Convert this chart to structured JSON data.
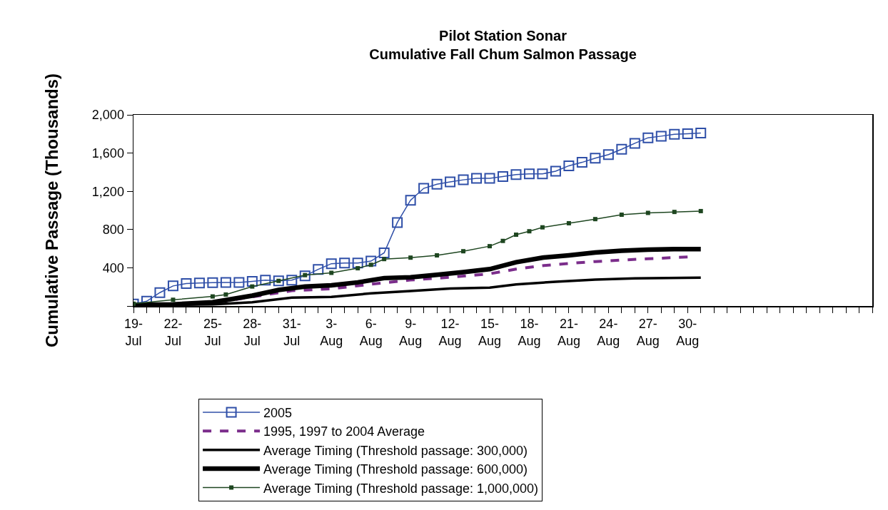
{
  "chart_data": {
    "type": "line",
    "title": "Pilot Station Sonar\nCumulative Fall Chum Salmon Passage",
    "ylabel": "Cumulative Passage (Thousands)",
    "xlim": [
      "--07-19",
      "--09-13"
    ],
    "xticks": [
      {
        "value": "--07-19",
        "label": "19-\nJul"
      },
      {
        "value": "--07-20",
        "label": null
      },
      {
        "value": "--07-21",
        "label": null
      },
      {
        "value": "--07-22",
        "label": "22-\nJul"
      },
      {
        "value": "--07-23",
        "label": null
      },
      {
        "value": "--07-24",
        "label": null
      },
      {
        "value": "--07-25",
        "label": "25-\nJul"
      },
      {
        "value": "--07-26",
        "label": null
      },
      {
        "value": "--07-27",
        "label": null
      },
      {
        "value": "--07-28",
        "label": "28-\nJul"
      },
      {
        "value": "--07-29",
        "label": null
      },
      {
        "value": "--07-30",
        "label": null
      },
      {
        "value": "--07-31",
        "label": "31-\nJul"
      },
      {
        "value": "--08-01",
        "label": null
      },
      {
        "value": "--08-02",
        "label": null
      },
      {
        "value": "--08-03",
        "label": "3-\nAug"
      },
      {
        "value": "--08-04",
        "label": null
      },
      {
        "value": "--08-05",
        "label": null
      },
      {
        "value": "--08-06",
        "label": "6-\nAug"
      },
      {
        "value": "--08-07",
        "label": null
      },
      {
        "value": "--08-08",
        "label": null
      },
      {
        "value": "--08-09",
        "label": "9-\nAug"
      },
      {
        "value": "--08-10",
        "label": null
      },
      {
        "value": "--08-11",
        "label": null
      },
      {
        "value": "--08-12",
        "label": "12-\nAug"
      },
      {
        "value": "--08-13",
        "label": null
      },
      {
        "value": "--08-14",
        "label": null
      },
      {
        "value": "--08-15",
        "label": "15-\nAug"
      },
      {
        "value": "--08-16",
        "label": null
      },
      {
        "value": "--08-17",
        "label": null
      },
      {
        "value": "--08-18",
        "label": "18-\nAug"
      },
      {
        "value": "--08-19",
        "label": null
      },
      {
        "value": "--08-20",
        "label": null
      },
      {
        "value": "--08-21",
        "label": "21-\nAug"
      },
      {
        "value": "--08-22",
        "label": null
      },
      {
        "value": "--08-23",
        "label": null
      },
      {
        "value": "--08-24",
        "label": "24-\nAug"
      },
      {
        "value": "--08-25",
        "label": null
      },
      {
        "value": "--08-26",
        "label": null
      },
      {
        "value": "--08-27",
        "label": "27-\nAug"
      },
      {
        "value": "--08-28",
        "label": null
      },
      {
        "value": "--08-29",
        "label": null
      },
      {
        "value": "--08-30",
        "label": "30-\nAug"
      },
      {
        "value": "--08-31",
        "label": null
      },
      {
        "value": "--09-01",
        "label": null
      },
      {
        "value": "--09-02",
        "label": null
      },
      {
        "value": "--09-03",
        "label": null
      },
      {
        "value": "--09-04",
        "label": null
      },
      {
        "value": "--09-05",
        "label": null
      },
      {
        "value": "--09-06",
        "label": null
      },
      {
        "value": "--09-07",
        "label": null
      },
      {
        "value": "--09-08",
        "label": null
      },
      {
        "value": "--09-09",
        "label": null
      },
      {
        "value": "--09-10",
        "label": null
      },
      {
        "value": "--09-11",
        "label": null
      },
      {
        "value": "--09-12",
        "label": null
      },
      {
        "value": "--09-13",
        "label": null
      }
    ],
    "ylim": [
      0,
      2000
    ],
    "yticks": [
      {
        "value": 0,
        "label": null
      },
      {
        "value": 400,
        "label": "400"
      },
      {
        "value": 800,
        "label": "800"
      },
      {
        "value": 1200,
        "label": "1,200"
      },
      {
        "value": 1600,
        "label": "1,600"
      },
      {
        "value": 2000,
        "label": "2,000"
      }
    ],
    "grid": false,
    "legend": "bottom",
    "series": [
      {
        "name": "2005",
        "color": "#2f4fa8",
        "marker": "square",
        "line_style": "solid",
        "x": [
          "--07-19",
          "--07-20",
          "--07-21",
          "--07-22",
          "--07-23",
          "--07-24",
          "--07-25",
          "--07-26",
          "--07-27",
          "--07-28",
          "--07-29",
          "--07-30",
          "--07-31",
          "--08-01",
          "--08-02",
          "--08-03",
          "--08-04",
          "--08-05",
          "--08-06",
          "--08-07",
          "--08-08",
          "--08-09",
          "--08-10",
          "--08-11",
          "--08-12",
          "--08-13",
          "--08-14",
          "--08-15",
          "--08-16",
          "--08-17",
          "--08-18",
          "--08-19",
          "--08-20",
          "--08-21",
          "--08-22",
          "--08-23",
          "--08-24",
          "--08-25",
          "--08-26",
          "--08-27",
          "--08-28",
          "--08-29",
          "--08-30",
          "--08-31"
        ],
        "values": [
          20,
          50,
          140,
          210,
          235,
          240,
          245,
          247,
          247,
          258,
          270,
          263,
          270,
          316,
          383,
          443,
          450,
          450,
          470,
          556,
          874,
          1107,
          1231,
          1274,
          1299,
          1320,
          1335,
          1335,
          1354,
          1375,
          1382,
          1382,
          1411,
          1467,
          1503,
          1546,
          1584,
          1640,
          1702,
          1760,
          1777,
          1796,
          1803,
          1810
        ]
      },
      {
        "name": "1995, 1997 to 2004 Average",
        "color": "#7b2d8b",
        "marker": "none",
        "line_style": "dashed",
        "x": [
          "--07-19",
          "--07-25",
          "--07-28",
          "--07-31",
          "--08-03",
          "--08-06",
          "--08-09",
          "--08-12",
          "--08-15",
          "--08-17",
          "--08-19",
          "--08-21",
          "--08-23",
          "--08-25",
          "--08-27",
          "--08-30"
        ],
        "values": [
          7,
          31,
          96,
          160,
          180,
          228,
          272,
          301,
          337,
          386,
          422,
          445,
          465,
          481,
          494,
          513
        ]
      },
      {
        "name": "Average Timing (Threshold passage: 300,000)",
        "color": "#000000",
        "marker": "none",
        "line_style": "solid",
        "x": [
          "--07-19",
          "--07-25",
          "--07-28",
          "--07-31",
          "--08-03",
          "--08-06",
          "--08-09",
          "--08-12",
          "--08-15",
          "--08-17",
          "--08-20",
          "--08-23",
          "--08-26",
          "--08-31"
        ],
        "values": [
          7,
          17,
          40,
          88,
          96,
          132,
          157,
          182,
          193,
          225,
          254,
          277,
          290,
          297
        ]
      },
      {
        "name": "Average Timing (Threshold passage: 600,000)",
        "color": "#000000",
        "marker": "none",
        "line_style": "solid",
        "x": [
          "--07-19",
          "--07-22",
          "--07-25",
          "--07-28",
          "--07-30",
          "--08-01",
          "--08-03",
          "--08-05",
          "--08-07",
          "--08-09",
          "--08-11",
          "--08-13",
          "--08-15",
          "--08-17",
          "--08-19",
          "--08-21",
          "--08-23",
          "--08-25",
          "--08-27",
          "--08-29",
          "--08-31"
        ],
        "values": [
          12,
          17,
          40,
          108,
          168,
          204,
          216,
          247,
          292,
          301,
          326,
          355,
          386,
          458,
          506,
          530,
          559,
          578,
          590,
          595,
          595
        ]
      },
      {
        "name": "Average Timing (Threshold passage: 1,000,000)",
        "color": "#1e4620",
        "marker": "square",
        "line_style": "solid",
        "x": [
          "--07-19",
          "--07-22",
          "--07-25",
          "--07-26",
          "--07-28",
          "--07-30",
          "--08-01",
          "--08-03",
          "--08-05",
          "--08-06",
          "--08-07",
          "--08-09",
          "--08-11",
          "--08-13",
          "--08-15",
          "--08-16",
          "--08-17",
          "--08-18",
          "--08-19",
          "--08-21",
          "--08-23",
          "--08-25",
          "--08-27",
          "--08-29",
          "--08-31"
        ],
        "values": [
          24,
          65,
          100,
          120,
          204,
          263,
          323,
          347,
          395,
          431,
          491,
          506,
          530,
          573,
          626,
          681,
          746,
          782,
          823,
          866,
          909,
          955,
          974,
          984,
          993
        ]
      }
    ]
  }
}
